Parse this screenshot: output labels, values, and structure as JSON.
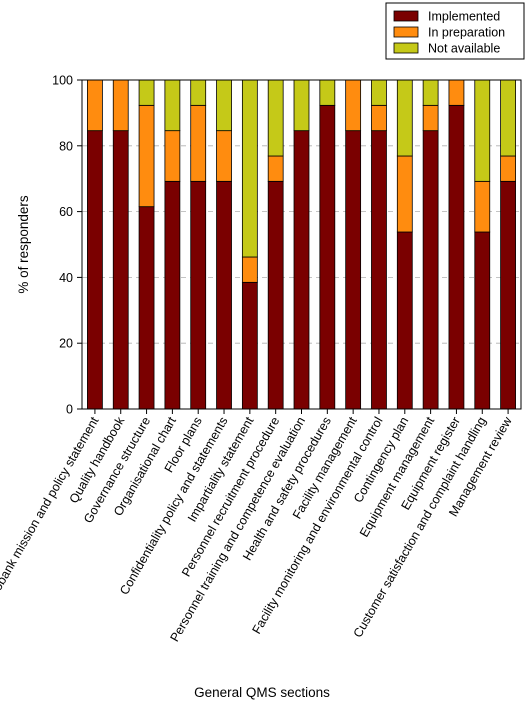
{
  "chart_data": {
    "type": "bar",
    "stacked": true,
    "title": "",
    "xlabel": "General QMS sections",
    "ylabel": "% of responders",
    "ylim": [
      0,
      100
    ],
    "yticks": [
      0,
      20,
      40,
      60,
      80,
      100
    ],
    "grid": "horizontal dashed",
    "legend_position": "top-right",
    "categories": [
      "Biobank mission and policy statement",
      "Quality handbook",
      "Governance structure",
      "Organisational chart",
      "Floor plans",
      "Confidentiality policy and statements",
      "Impartiality statement",
      "Personnel recruitment procedure",
      "Personnel training and competence evaluation",
      "Health and safety procedures",
      "Facility management",
      "Facility monitoring and environmental control",
      "Contingency plan",
      "Equipment management",
      "Equipment register",
      "Customer satisfaction and complaint handling",
      "Management review"
    ],
    "series": [
      {
        "name": "Implemented",
        "color": "#7a0000",
        "values": [
          84.6,
          84.6,
          61.5,
          69.2,
          69.2,
          69.2,
          38.5,
          69.2,
          84.6,
          92.3,
          84.6,
          84.6,
          53.8,
          84.6,
          92.3,
          53.8,
          69.2
        ]
      },
      {
        "name": "In preparation",
        "color": "#ff8c0f",
        "values": [
          15.4,
          15.4,
          30.8,
          15.4,
          23.1,
          15.4,
          7.7,
          7.7,
          0,
          0,
          15.4,
          7.7,
          23.1,
          7.7,
          7.7,
          15.4,
          7.7
        ]
      },
      {
        "name": "Not available",
        "color": "#c5c918",
        "values": [
          0,
          0,
          7.7,
          15.4,
          7.7,
          15.4,
          53.8,
          23.1,
          15.4,
          7.7,
          0,
          7.7,
          23.1,
          7.7,
          0,
          30.8,
          23.1
        ]
      }
    ]
  }
}
